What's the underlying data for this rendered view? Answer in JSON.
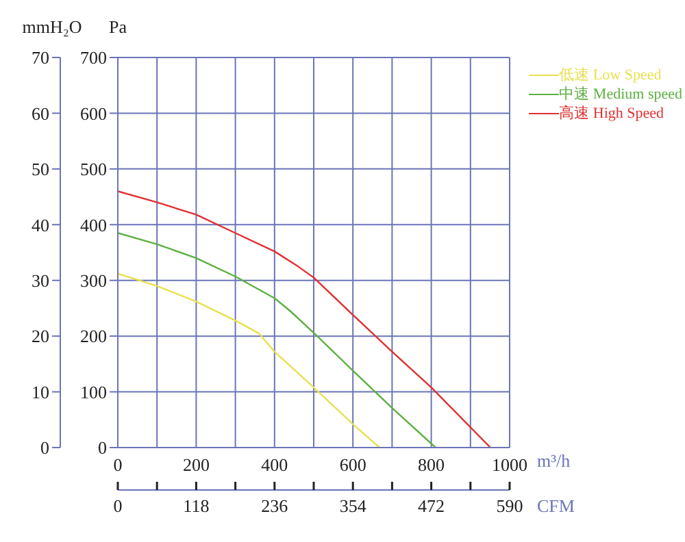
{
  "chart_data": {
    "type": "line",
    "xlabel": "m³/h",
    "ylabel": "Pa",
    "y2label": "mmH₂O",
    "x2label": "CFM",
    "xlim": [
      0,
      1000
    ],
    "xticks": [
      0,
      {
        "value": 100,
        "label": null
      },
      200,
      {
        "value": 300,
        "label": null
      },
      400,
      {
        "value": 500,
        "label": null
      },
      600,
      {
        "value": 700,
        "label": null
      },
      800,
      {
        "value": 900,
        "label": null
      },
      1000
    ],
    "ylim": [
      0,
      700
    ],
    "yticks": [
      0,
      100,
      200,
      300,
      400,
      500,
      600,
      700
    ],
    "y2lim": [
      0,
      70
    ],
    "y2ticks": [
      0,
      10,
      20,
      30,
      40,
      50,
      60,
      70
    ],
    "x2lim": [
      0,
      590
    ],
    "x2ticks": [
      0,
      {
        "value": 59,
        "label": null
      },
      118,
      {
        "value": 177,
        "label": null
      },
      236,
      {
        "value": 295,
        "label": null
      },
      354,
      {
        "value": 413,
        "label": null
      },
      472,
      {
        "value": 531,
        "label": null
      },
      590
    ],
    "grid": true,
    "legend": "top right",
    "marker": "none",
    "line_style": "solid",
    "series": [
      {
        "name": "低速 Low Speed",
        "color": "#e8e050",
        "x": [
          0,
          100,
          200,
          300,
          360,
          400,
          500,
          600,
          668
        ],
        "values": [
          312,
          290,
          262,
          228,
          205,
          172,
          108,
          42,
          0
        ]
      },
      {
        "name": "中速 Medium speed",
        "color": "#5cb040",
        "x": [
          0,
          100,
          200,
          300,
          400,
          440,
          500,
          600,
          700,
          811
        ],
        "values": [
          385,
          365,
          340,
          307,
          268,
          245,
          206,
          138,
          71,
          0
        ]
      },
      {
        "name": "高速 High Speed",
        "color": "#e03030",
        "x": [
          0,
          100,
          200,
          300,
          400,
          460,
          500,
          600,
          700,
          800,
          951
        ],
        "values": [
          460,
          440,
          418,
          385,
          352,
          325,
          305,
          238,
          172,
          108,
          0
        ]
      }
    ]
  }
}
